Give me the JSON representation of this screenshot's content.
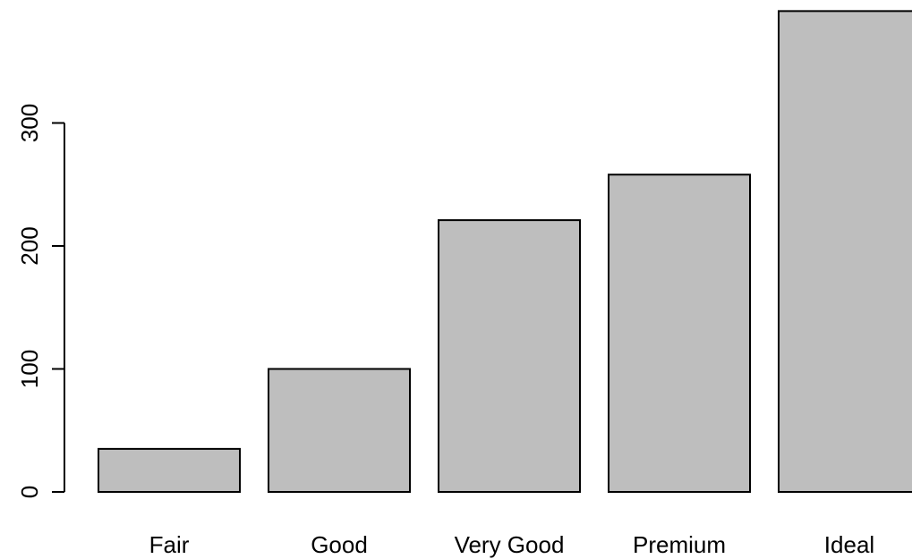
{
  "chart_data": {
    "type": "bar",
    "categories": [
      "Fair",
      "Good",
      "Very Good",
      "Premium",
      "Ideal"
    ],
    "values": [
      35,
      100,
      221,
      258,
      391
    ],
    "title": "",
    "xlabel": "",
    "ylabel": "",
    "ylim": [
      0,
      391
    ],
    "yticks": [
      "0",
      "100",
      "200",
      "300"
    ],
    "grid": false,
    "bar_color": "#bebebe",
    "bar_edge_color": "#000000"
  }
}
